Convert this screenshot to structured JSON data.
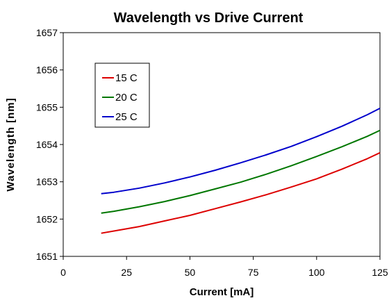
{
  "chart_data": {
    "type": "line",
    "title": "Wavelength vs Drive Current",
    "xlabel": "Current [mA]",
    "ylabel": "Wavelength [nm]",
    "xlim": [
      0,
      125
    ],
    "ylim": [
      1651,
      1657
    ],
    "x_ticks": [
      0,
      25,
      50,
      75,
      100,
      125
    ],
    "y_ticks": [
      1651,
      1652,
      1653,
      1654,
      1655,
      1656,
      1657
    ],
    "grid": false,
    "legend_position": "upper-left",
    "x": [
      15,
      20,
      30,
      40,
      50,
      60,
      70,
      80,
      90,
      100,
      110,
      120,
      125
    ],
    "series": [
      {
        "name": "15 C",
        "color": "#dd0000",
        "values": [
          1651.62,
          1651.68,
          1651.8,
          1651.95,
          1652.1,
          1652.28,
          1652.46,
          1652.65,
          1652.86,
          1653.08,
          1653.34,
          1653.62,
          1653.78
        ]
      },
      {
        "name": "20 C",
        "color": "#007700",
        "values": [
          1652.16,
          1652.21,
          1652.33,
          1652.47,
          1652.63,
          1652.81,
          1652.99,
          1653.2,
          1653.43,
          1653.68,
          1653.94,
          1654.22,
          1654.38
        ]
      },
      {
        "name": "25 C",
        "color": "#0000cc",
        "values": [
          1652.68,
          1652.72,
          1652.83,
          1652.97,
          1653.13,
          1653.31,
          1653.51,
          1653.72,
          1653.95,
          1654.21,
          1654.49,
          1654.8,
          1654.97
        ]
      }
    ]
  }
}
